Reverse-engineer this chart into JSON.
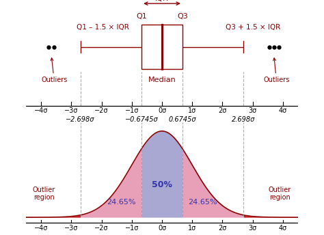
{
  "fig_width": 4.74,
  "fig_height": 3.44,
  "dpi": 100,
  "dark_red": "#8B0000",
  "blue_fill": "#9999CC",
  "pink_fill": "#E8A0B8",
  "dashed_color": "#999999",
  "blue_text": "#3333AA",
  "sigma_ticks": [
    -4,
    -3,
    -2,
    -1,
    0,
    1,
    2,
    3,
    4
  ],
  "q1": -0.6745,
  "q3": 0.6745,
  "whisker_low": -2.698,
  "whisker_high": 2.698,
  "xlim": [
    -4.5,
    4.5
  ]
}
